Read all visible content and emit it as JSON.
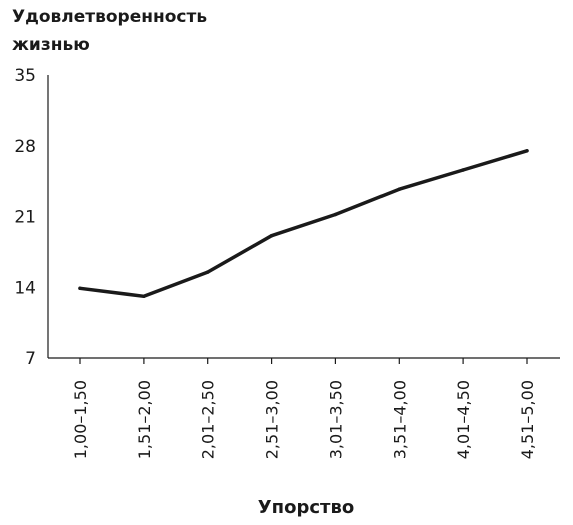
{
  "chart_data": {
    "type": "line",
    "ylabel_lines": [
      "Удовлетворенность",
      "жизнью"
    ],
    "xlabel": "Упорство",
    "categories": [
      "1,00–1,50",
      "1,51–2,00",
      "2,01–2,50",
      "2,51–3,00",
      "3,01–3,50",
      "3,51–4,00",
      "4,01–4,50",
      "4,51–5,00"
    ],
    "values": [
      13.9,
      13.1,
      15.5,
      19.1,
      21.2,
      23.7,
      25.6,
      27.5
    ],
    "yticks": [
      "35",
      "28",
      "21",
      "14",
      "7"
    ],
    "ylim": [
      7,
      35
    ],
    "grid": false,
    "legend": "none",
    "line_color": "#1a1a1a"
  }
}
